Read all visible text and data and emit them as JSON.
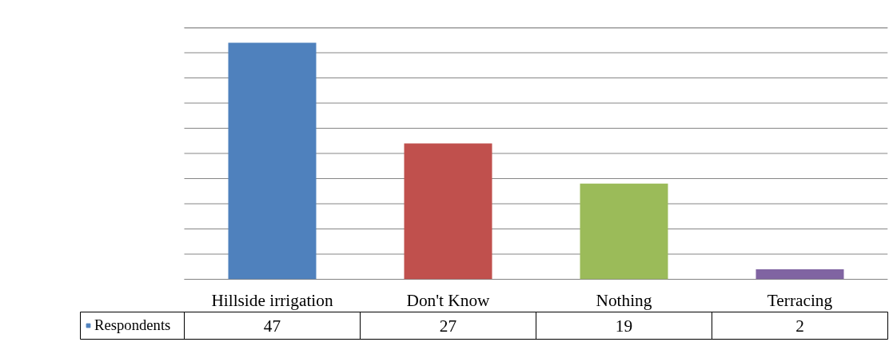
{
  "chart_data": {
    "type": "bar",
    "categories": [
      "Hillside irrigation",
      "Don't Know",
      "Nothing",
      "Terracing"
    ],
    "series": [
      {
        "name": "Respondents",
        "colors": [
          "#4f81bd",
          "#c0504d",
          "#9bbb59",
          "#8064a2"
        ],
        "values": [
          47,
          27,
          19,
          2
        ]
      }
    ],
    "ylim": [
      0,
      50
    ],
    "yticks": [
      {
        "value": 0,
        "label": null
      },
      {
        "value": 5,
        "label": null
      },
      {
        "value": 10,
        "label": null
      },
      {
        "value": 15,
        "label": null
      },
      {
        "value": 20,
        "label": null
      },
      {
        "value": 25,
        "label": null
      },
      {
        "value": 30,
        "label": null
      },
      {
        "value": 35,
        "label": null
      },
      {
        "value": 40,
        "label": null
      },
      {
        "value": 45,
        "label": null
      },
      {
        "value": 50,
        "label": null
      }
    ],
    "grid": "y",
    "tick_labels": "x",
    "data_labels": true,
    "legend": "bottom left"
  }
}
